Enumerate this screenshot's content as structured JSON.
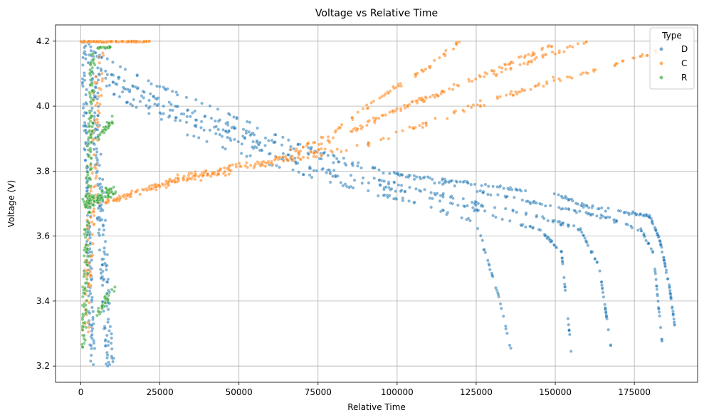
{
  "chart_data": {
    "type": "scatter",
    "title": "Voltage vs Relative Time",
    "xlabel": "Relative Time",
    "ylabel": "Voltage (V)",
    "xlim": [
      -8000,
      195000
    ],
    "ylim": [
      3.15,
      4.25
    ],
    "xticks": [
      0,
      25000,
      50000,
      75000,
      100000,
      125000,
      150000,
      175000
    ],
    "xtick_labels": [
      "0",
      "25000",
      "50000",
      "75000",
      "100000",
      "125000",
      "150000",
      "175000"
    ],
    "yticks": [
      3.2,
      3.4,
      3.6,
      3.8,
      4.0,
      4.2
    ],
    "ytick_labels": [
      "3.2",
      "3.4",
      "3.6",
      "3.8",
      "4.0",
      "4.2"
    ],
    "grid": true,
    "legend": {
      "title": "Type",
      "placement": "top-right"
    },
    "series": [
      {
        "name": "D",
        "color": "#1f77b4",
        "traces": [
          {
            "from": [
              0,
              4.2
            ],
            "to": [
              3000,
              3.2
            ],
            "n": 140,
            "jitter_x": 1500,
            "jitter_y": 0.05
          },
          {
            "from": [
              2000,
              4.18
            ],
            "to": [
              8000,
              3.2
            ],
            "n": 180,
            "jitter_x": 2500,
            "jitter_y": 0.04
          },
          {
            "points": [
              [
                5000,
                4.16
              ],
              [
                25000,
                4.06
              ],
              [
                50000,
                3.96
              ],
              [
                75000,
                3.86
              ],
              [
                100000,
                3.79
              ],
              [
                125000,
                3.76
              ],
              [
                150000,
                3.73
              ],
              [
                160000,
                3.69
              ],
              [
                175000,
                3.67
              ],
              [
                180000,
                3.66
              ],
              [
                183000,
                3.59
              ],
              [
                186000,
                3.45
              ],
              [
                188000,
                3.31
              ]
            ],
            "n": 240,
            "jitter_y": 0.008
          },
          {
            "points": [
              [
                5000,
                4.12
              ],
              [
                25000,
                4.02
              ],
              [
                50000,
                3.93
              ],
              [
                75000,
                3.84
              ],
              [
                100000,
                3.79
              ],
              [
                125000,
                3.74
              ],
              [
                150000,
                3.69
              ],
              [
                165000,
                3.66
              ],
              [
                177000,
                3.62
              ],
              [
                181000,
                3.55
              ],
              [
                184000,
                3.25
              ]
            ],
            "n": 190,
            "jitter_y": 0.008
          },
          {
            "points": [
              [
                5000,
                4.1
              ],
              [
                25000,
                4.0
              ],
              [
                50000,
                3.91
              ],
              [
                75000,
                3.81
              ],
              [
                100000,
                3.76
              ],
              [
                125000,
                3.7
              ],
              [
                145000,
                3.66
              ],
              [
                158000,
                3.62
              ],
              [
                164000,
                3.5
              ],
              [
                168000,
                3.23
              ]
            ],
            "n": 170,
            "jitter_y": 0.008
          },
          {
            "points": [
              [
                5000,
                4.08
              ],
              [
                25000,
                3.98
              ],
              [
                50000,
                3.89
              ],
              [
                75000,
                3.8
              ],
              [
                100000,
                3.74
              ],
              [
                125000,
                3.68
              ],
              [
                145000,
                3.62
              ],
              [
                152000,
                3.55
              ],
              [
                155000,
                3.25
              ]
            ],
            "n": 150,
            "jitter_y": 0.008
          },
          {
            "points": [
              [
                8000,
                4.05
              ],
              [
                30000,
                3.93
              ],
              [
                60000,
                3.82
              ],
              [
                90000,
                3.74
              ],
              [
                110000,
                3.69
              ],
              [
                125000,
                3.64
              ],
              [
                132000,
                3.42
              ],
              [
                136000,
                3.25
              ]
            ],
            "n": 90,
            "jitter_y": 0.01
          }
        ]
      },
      {
        "name": "C",
        "color": "#ff7f0e",
        "traces": [
          {
            "from": [
              0,
              4.2
            ],
            "to": [
              22000,
              4.2
            ],
            "n": 90,
            "jitter_x": 0,
            "jitter_y": 0.003
          },
          {
            "from": [
              0,
              3.3
            ],
            "to": [
              5000,
              4.2
            ],
            "n": 110,
            "jitter_x": 2500,
            "jitter_y": 0.05
          },
          {
            "points": [
              [
                5000,
                3.7
              ],
              [
                15000,
                3.72
              ],
              [
                30000,
                3.78
              ],
              [
                50000,
                3.82
              ],
              [
                70000,
                3.84
              ],
              [
                90000,
                3.88
              ],
              [
                110000,
                3.95
              ],
              [
                130000,
                4.02
              ],
              [
                150000,
                4.08
              ],
              [
                170000,
                4.13
              ],
              [
                185000,
                4.18
              ]
            ],
            "n": 170,
            "jitter_y": 0.012
          },
          {
            "points": [
              [
                8000,
                3.71
              ],
              [
                25000,
                3.76
              ],
              [
                45000,
                3.8
              ],
              [
                65000,
                3.84
              ],
              [
                85000,
                3.92
              ],
              [
                105000,
                4.01
              ],
              [
                125000,
                4.08
              ],
              [
                145000,
                4.15
              ],
              [
                160000,
                4.2
              ]
            ],
            "n": 140,
            "jitter_y": 0.012
          },
          {
            "points": [
              [
                10000,
                3.71
              ],
              [
                30000,
                3.77
              ],
              [
                55000,
                3.81
              ],
              [
                75000,
                3.86
              ],
              [
                95000,
                3.97
              ],
              [
                115000,
                4.05
              ],
              [
                135000,
                4.13
              ],
              [
                150000,
                4.19
              ]
            ],
            "n": 120,
            "jitter_y": 0.012
          },
          {
            "points": [
              [
                15000,
                3.73
              ],
              [
                40000,
                3.79
              ],
              [
                60000,
                3.83
              ],
              [
                80000,
                3.92
              ],
              [
                95000,
                4.03
              ],
              [
                110000,
                4.12
              ],
              [
                120000,
                4.2
              ]
            ],
            "n": 100,
            "jitter_y": 0.012
          }
        ]
      },
      {
        "name": "R",
        "color": "#2ca02c",
        "traces": [
          {
            "from": [
              0,
              3.25
            ],
            "to": [
              3000,
              4.15
            ],
            "n": 170,
            "jitter_x": 1500,
            "jitter_y": 0.04
          },
          {
            "from": [
              500,
              3.7
            ],
            "to": [
              10000,
              3.74
            ],
            "n": 90,
            "jitter_x": 1000,
            "jitter_y": 0.03
          },
          {
            "from": [
              5000,
              4.18
            ],
            "to": [
              10000,
              4.18
            ],
            "n": 20,
            "jitter_x": 0,
            "jitter_y": 0.005
          },
          {
            "from": [
              5000,
              3.9
            ],
            "to": [
              10000,
              3.96
            ],
            "n": 28,
            "jitter_x": 500,
            "jitter_y": 0.02
          },
          {
            "from": [
              4000,
              3.35
            ],
            "to": [
              10000,
              3.44
            ],
            "n": 28,
            "jitter_x": 800,
            "jitter_y": 0.02
          }
        ]
      }
    ]
  }
}
